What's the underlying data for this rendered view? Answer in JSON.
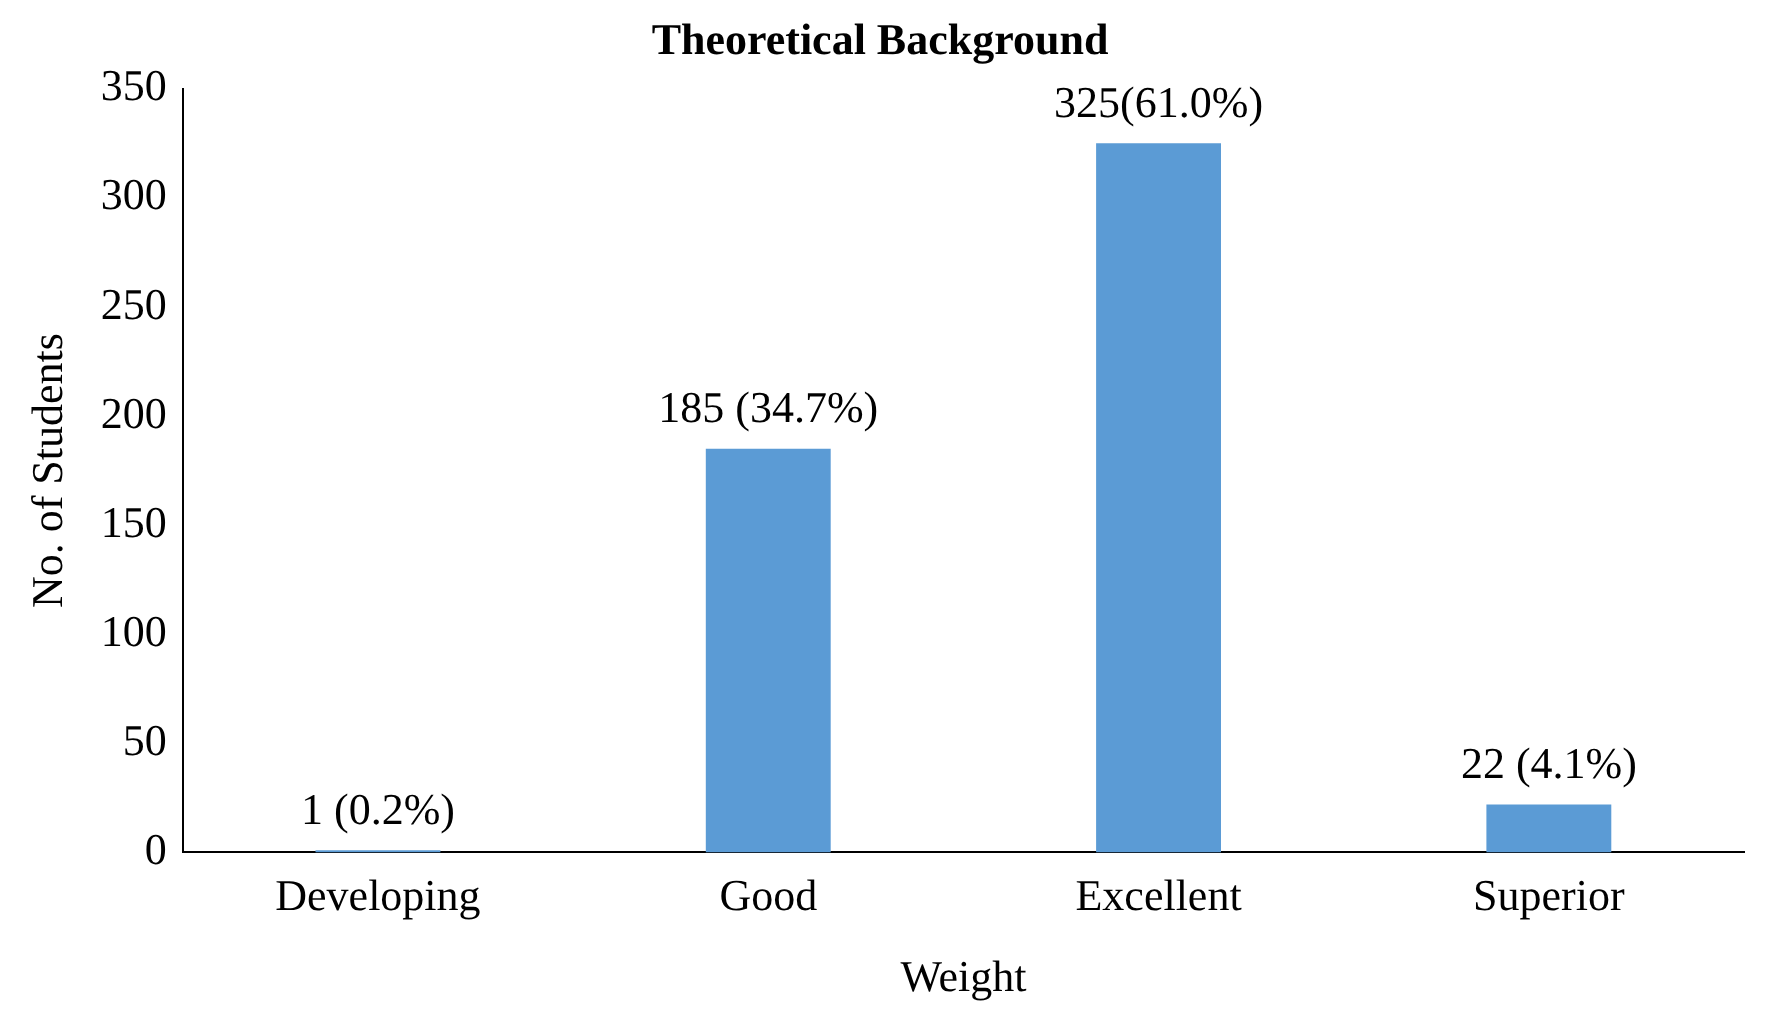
{
  "chart_data": {
    "type": "bar",
    "title": "Theoretical Background",
    "xlabel": "Weight",
    "ylabel": "No. of Students",
    "categories": [
      "Developing",
      "Good",
      "Excellent",
      "Superior"
    ],
    "series": [
      {
        "color": "#5b9bd5",
        "values": [
          1,
          185,
          325,
          22
        ],
        "value_labels": [
          "1 (0.2%)",
          "185 (34.7%)",
          "325(61.0%)",
          "22 (4.1%)"
        ]
      }
    ],
    "ylim": [
      0,
      350
    ],
    "yticks": [
      0,
      50,
      100,
      150,
      200,
      250,
      300,
      350
    ],
    "grid": false,
    "legend": false
  }
}
